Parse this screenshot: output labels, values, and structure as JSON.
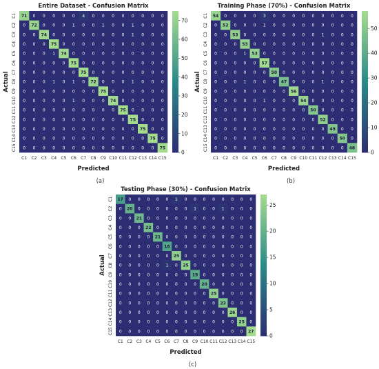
{
  "chart_data": [
    {
      "type": "heatmap",
      "title": "Entire Dataset - Confusion Matrix",
      "caption": "(a)",
      "xlabel": "Predicted",
      "ylabel": "Actual",
      "categories": [
        "C1",
        "C2",
        "C3",
        "C4",
        "C5",
        "C6",
        "C7",
        "C8",
        "C9",
        "C10",
        "C11",
        "C12",
        "C13",
        "C14",
        "C15"
      ],
      "colorbar_ticks": [
        0,
        10,
        20,
        30,
        40,
        50,
        60,
        70
      ],
      "vmax": 75,
      "matrix": [
        [
          71,
          0,
          0,
          0,
          0,
          0,
          4,
          0,
          0,
          0,
          0,
          0,
          0,
          0,
          0
        ],
        [
          0,
          72,
          0,
          0,
          0,
          1,
          0,
          0,
          1,
          0,
          0,
          1,
          0,
          0,
          0
        ],
        [
          0,
          0,
          74,
          0,
          0,
          0,
          0,
          0,
          0,
          0,
          0,
          1,
          0,
          0,
          0
        ],
        [
          0,
          0,
          0,
          75,
          0,
          0,
          0,
          0,
          0,
          0,
          0,
          0,
          0,
          0,
          0
        ],
        [
          0,
          0,
          0,
          1,
          74,
          0,
          0,
          0,
          0,
          0,
          0,
          0,
          0,
          0,
          0
        ],
        [
          0,
          0,
          0,
          0,
          0,
          75,
          0,
          0,
          0,
          0,
          0,
          0,
          0,
          0,
          0
        ],
        [
          0,
          0,
          0,
          0,
          0,
          0,
          75,
          0,
          0,
          0,
          0,
          0,
          0,
          0,
          0
        ],
        [
          0,
          0,
          0,
          1,
          0,
          1,
          0,
          72,
          0,
          0,
          0,
          1,
          0,
          0,
          0
        ],
        [
          0,
          0,
          0,
          0,
          0,
          0,
          0,
          0,
          75,
          0,
          0,
          0,
          0,
          0,
          0
        ],
        [
          0,
          0,
          0,
          0,
          0,
          1,
          0,
          0,
          0,
          74,
          0,
          0,
          0,
          0,
          0
        ],
        [
          0,
          0,
          0,
          0,
          0,
          0,
          0,
          0,
          0,
          0,
          75,
          0,
          0,
          0,
          0
        ],
        [
          0,
          0,
          0,
          0,
          0,
          0,
          0,
          0,
          0,
          0,
          0,
          75,
          0,
          0,
          0
        ],
        [
          0,
          0,
          0,
          0,
          0,
          0,
          0,
          0,
          0,
          0,
          0,
          0,
          75,
          0,
          0
        ],
        [
          0,
          0,
          0,
          0,
          0,
          0,
          0,
          0,
          0,
          0,
          0,
          0,
          0,
          75,
          0
        ],
        [
          0,
          0,
          0,
          0,
          0,
          0,
          0,
          0,
          0,
          0,
          0,
          0,
          0,
          0,
          75
        ]
      ]
    },
    {
      "type": "heatmap",
      "title": "Training Phase (70%) - Confusion Matrix",
      "caption": "(b)",
      "xlabel": "Predicted",
      "ylabel": "Actual",
      "categories": [
        "C1",
        "C2",
        "C3",
        "C4",
        "C5",
        "C6",
        "C7",
        "C8",
        "C9",
        "C10",
        "C11",
        "C12",
        "C13",
        "C14",
        "C15"
      ],
      "colorbar_ticks": [
        0,
        10,
        20,
        30,
        40,
        50
      ],
      "vmax": 57,
      "matrix": [
        [
          54,
          0,
          0,
          0,
          0,
          3,
          0,
          0,
          0,
          0,
          0,
          0,
          0,
          0,
          0
        ],
        [
          0,
          52,
          0,
          0,
          0,
          1,
          0,
          0,
          0,
          0,
          0,
          0,
          0,
          0,
          0
        ],
        [
          0,
          0,
          53,
          0,
          0,
          0,
          0,
          0,
          0,
          0,
          0,
          1,
          0,
          0,
          0
        ],
        [
          0,
          0,
          0,
          53,
          0,
          0,
          0,
          0,
          0,
          0,
          0,
          0,
          0,
          0,
          0
        ],
        [
          0,
          0,
          0,
          1,
          53,
          0,
          0,
          0,
          0,
          0,
          0,
          0,
          0,
          0,
          0
        ],
        [
          0,
          0,
          0,
          0,
          0,
          57,
          0,
          0,
          0,
          0,
          0,
          0,
          0,
          0,
          0
        ],
        [
          0,
          0,
          0,
          0,
          0,
          0,
          50,
          0,
          0,
          0,
          0,
          0,
          0,
          0,
          0
        ],
        [
          0,
          0,
          0,
          1,
          0,
          0,
          0,
          47,
          0,
          0,
          0,
          1,
          0,
          0,
          0
        ],
        [
          0,
          0,
          0,
          0,
          0,
          0,
          0,
          0,
          56,
          0,
          0,
          0,
          0,
          0,
          0
        ],
        [
          0,
          0,
          0,
          0,
          0,
          1,
          0,
          0,
          0,
          54,
          0,
          0,
          0,
          0,
          0
        ],
        [
          0,
          0,
          0,
          0,
          0,
          0,
          0,
          0,
          0,
          0,
          50,
          0,
          0,
          0,
          0
        ],
        [
          0,
          0,
          0,
          0,
          0,
          0,
          0,
          0,
          0,
          0,
          0,
          52,
          0,
          0,
          0
        ],
        [
          0,
          0,
          0,
          0,
          0,
          0,
          0,
          0,
          0,
          0,
          0,
          0,
          49,
          0,
          0
        ],
        [
          0,
          0,
          0,
          0,
          0,
          0,
          0,
          0,
          0,
          0,
          0,
          0,
          0,
          50,
          0
        ],
        [
          0,
          0,
          0,
          0,
          0,
          0,
          0,
          0,
          0,
          0,
          0,
          0,
          0,
          0,
          48
        ]
      ]
    },
    {
      "type": "heatmap",
      "title": "Testing Phase (30%) - Confusion Matrix",
      "caption": "(c)",
      "xlabel": "Predicted",
      "ylabel": "Actual",
      "categories": [
        "C1",
        "C2",
        "C3",
        "C4",
        "C5",
        "C6",
        "C7",
        "C8",
        "C9",
        "C10",
        "C11",
        "C12",
        "C13",
        "C14",
        "C15"
      ],
      "colorbar_ticks": [
        0,
        5,
        10,
        15,
        20,
        25
      ],
      "vmax": 27,
      "matrix": [
        [
          17,
          0,
          0,
          0,
          0,
          0,
          1,
          0,
          0,
          0,
          0,
          0,
          0,
          0,
          0
        ],
        [
          0,
          20,
          0,
          0,
          0,
          0,
          0,
          0,
          1,
          0,
          0,
          1,
          0,
          0,
          0
        ],
        [
          0,
          0,
          21,
          0,
          0,
          0,
          0,
          0,
          0,
          0,
          0,
          0,
          0,
          0,
          0
        ],
        [
          0,
          0,
          0,
          22,
          0,
          0,
          0,
          0,
          0,
          0,
          0,
          0,
          0,
          0,
          0
        ],
        [
          0,
          0,
          0,
          0,
          21,
          0,
          0,
          0,
          0,
          0,
          0,
          0,
          0,
          0,
          0
        ],
        [
          0,
          0,
          0,
          0,
          0,
          18,
          0,
          0,
          0,
          0,
          0,
          0,
          0,
          0,
          0
        ],
        [
          0,
          0,
          0,
          0,
          0,
          0,
          25,
          0,
          0,
          0,
          0,
          0,
          0,
          0,
          0
        ],
        [
          0,
          0,
          0,
          0,
          0,
          1,
          0,
          25,
          0,
          0,
          0,
          0,
          0,
          0,
          0
        ],
        [
          0,
          0,
          0,
          0,
          0,
          0,
          0,
          0,
          19,
          0,
          0,
          0,
          0,
          0,
          0
        ],
        [
          0,
          0,
          0,
          0,
          0,
          0,
          0,
          0,
          0,
          20,
          0,
          0,
          0,
          0,
          0
        ],
        [
          0,
          0,
          0,
          0,
          0,
          0,
          0,
          0,
          0,
          0,
          25,
          0,
          0,
          0,
          0
        ],
        [
          0,
          0,
          0,
          0,
          0,
          0,
          0,
          0,
          0,
          0,
          0,
          23,
          0,
          0,
          0
        ],
        [
          0,
          0,
          0,
          0,
          0,
          0,
          0,
          0,
          0,
          0,
          0,
          0,
          26,
          0,
          0
        ],
        [
          0,
          0,
          0,
          0,
          0,
          0,
          0,
          0,
          0,
          0,
          0,
          0,
          0,
          25,
          0
        ],
        [
          0,
          0,
          0,
          0,
          0,
          0,
          0,
          0,
          0,
          0,
          0,
          0,
          0,
          0,
          27
        ]
      ]
    }
  ],
  "colors": {
    "low": "#2c2d72",
    "mid": "#2a8a88",
    "high": "#a4dc8e",
    "text_on_dark": "#ffffff",
    "text_on_light": "#1a1a3a"
  }
}
